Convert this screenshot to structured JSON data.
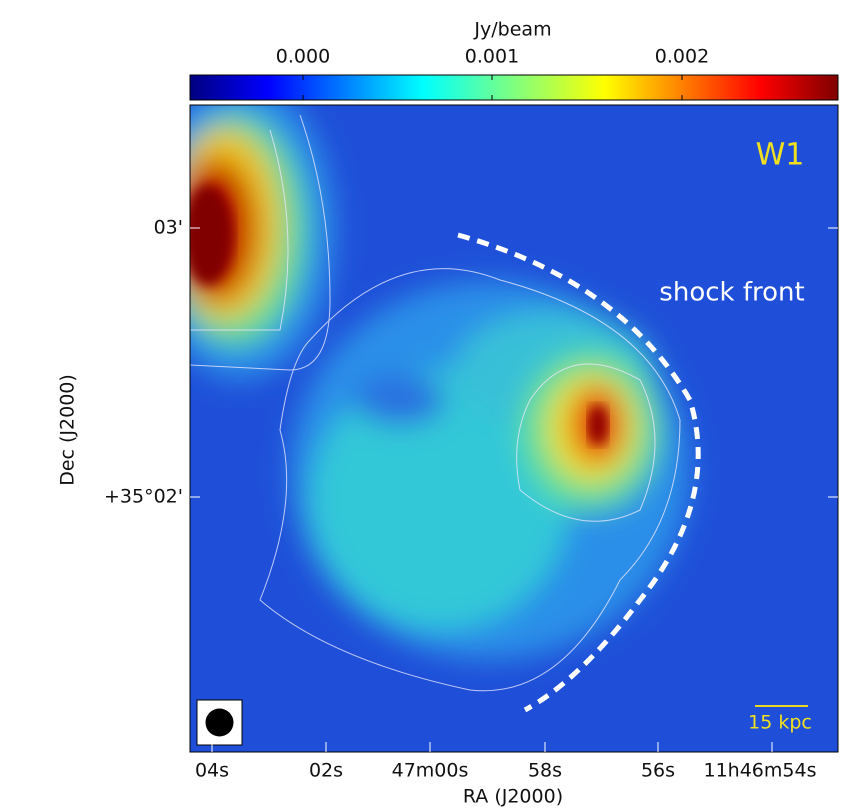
{
  "colorbar": {
    "label": "Jy/beam",
    "ticks": [
      "0.000",
      "0.001",
      "0.002"
    ]
  },
  "x_axis": {
    "label": "RA (J2000)",
    "ticks": [
      "04s",
      "02s",
      "47m00s",
      "58s",
      "56s",
      "11h46m54s"
    ]
  },
  "y_axis": {
    "label": "Dec (J2000)",
    "ticks": [
      "03'",
      "+35°02'"
    ]
  },
  "annotations": {
    "region": "W1",
    "feature": "shock front",
    "scale_bar": "15 kpc"
  }
}
